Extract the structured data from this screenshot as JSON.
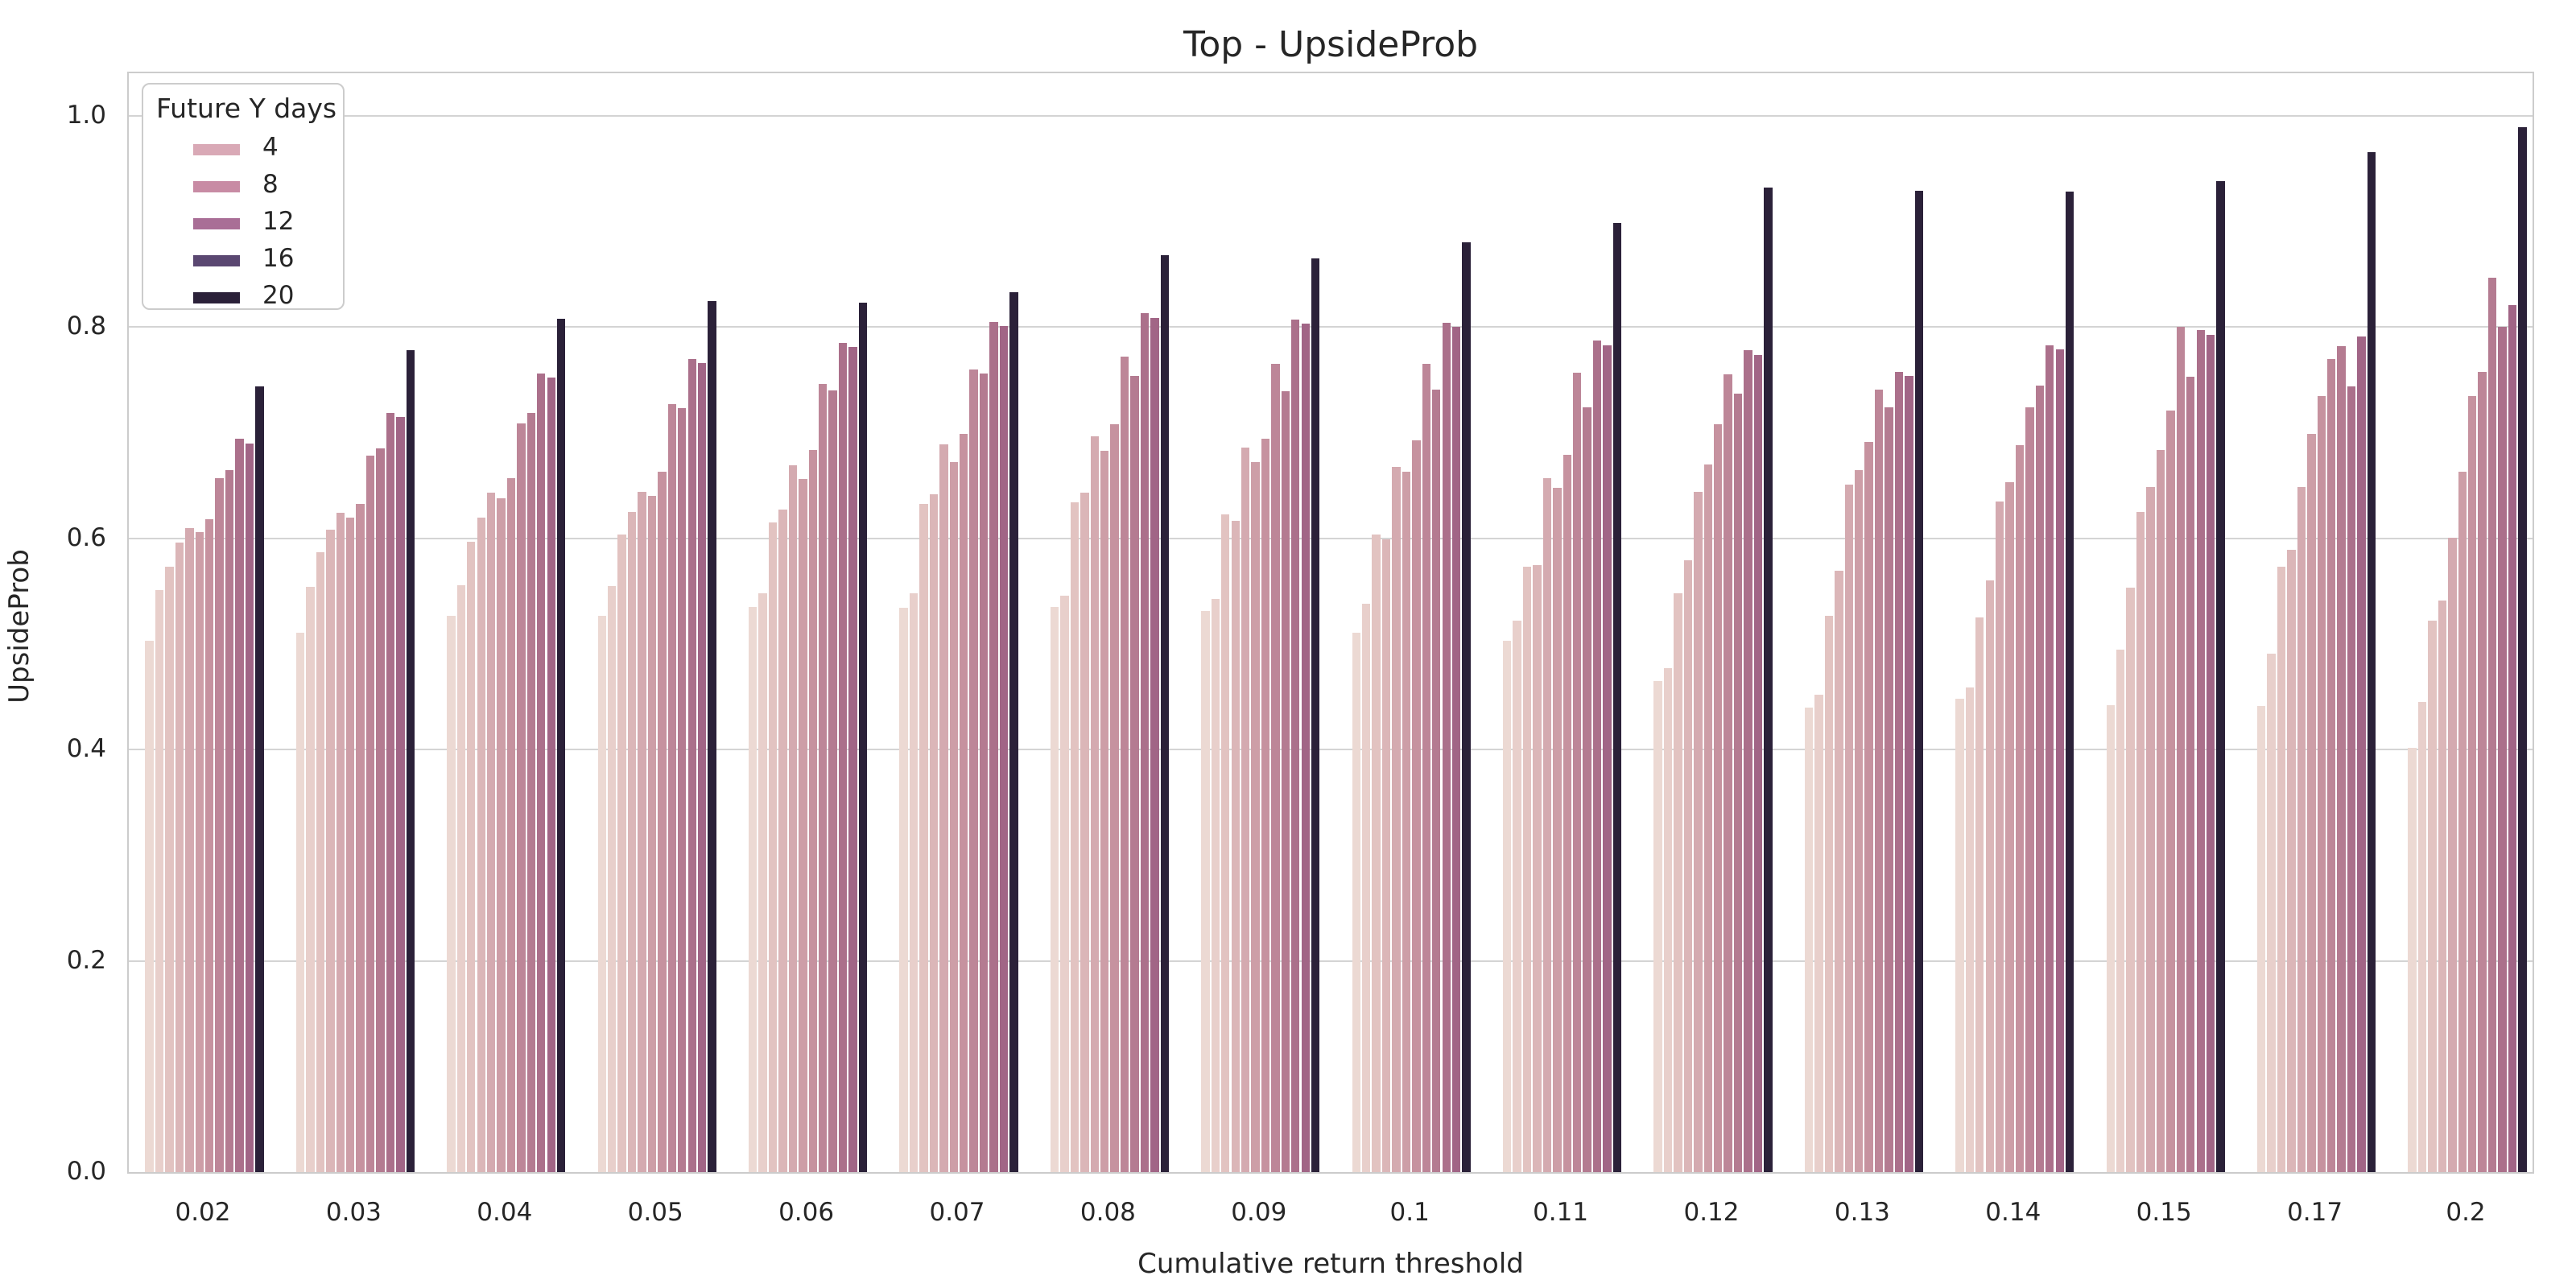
{
  "chart_data": {
    "type": "bar",
    "title": "Top - UpsideProb",
    "xlabel": "Cumulative return threshold",
    "ylabel": "UpsideProb",
    "ylim": [
      0.0,
      1.043
    ],
    "ytick_labels": [
      "0.0",
      "0.2",
      "0.4",
      "0.6",
      "0.8",
      "1.0"
    ],
    "ytick_values": [
      0.0,
      0.2,
      0.4,
      0.6,
      0.8,
      1.0
    ],
    "grid": "horizontal",
    "legend": {
      "title": "Future Y days",
      "position": "upper-left",
      "entries": [
        {
          "label": "4",
          "color": "#d9a9b6"
        },
        {
          "label": "8",
          "color": "#c88ba4"
        },
        {
          "label": "12",
          "color": "#a96e96"
        },
        {
          "label": "16",
          "color": "#5a4771"
        },
        {
          "label": "20",
          "color": "#2b2139"
        }
      ]
    },
    "categories": [
      "0.02",
      "0.03",
      "0.04",
      "0.05",
      "0.06",
      "0.07",
      "0.08",
      "0.09",
      "0.1",
      "0.11",
      "0.12",
      "0.13",
      "0.14",
      "0.15",
      "0.17",
      "0.2"
    ],
    "bars_per_group": 12,
    "bar_colors": [
      "#ecd9d3",
      "#e8cfcb",
      "#e2c3c1",
      "#dbb6b8",
      "#d4aab0",
      "#cd9ea7",
      "#c6929f",
      "#bd8698",
      "#b47b91",
      "#ab708b",
      "#a16586",
      "#2b2139"
    ],
    "groups": [
      {
        "category": "0.02",
        "values": [
          0.503,
          0.551,
          0.573,
          0.596,
          0.61,
          0.606,
          0.618,
          0.657,
          0.665,
          0.694,
          0.69,
          0.744
        ]
      },
      {
        "category": "0.03",
        "values": [
          0.511,
          0.554,
          0.587,
          0.608,
          0.624,
          0.62,
          0.633,
          0.678,
          0.685,
          0.719,
          0.715,
          0.778
        ]
      },
      {
        "category": "0.04",
        "values": [
          0.527,
          0.556,
          0.597,
          0.62,
          0.643,
          0.638,
          0.657,
          0.709,
          0.719,
          0.756,
          0.752,
          0.808
        ]
      },
      {
        "category": "0.05",
        "values": [
          0.527,
          0.555,
          0.604,
          0.625,
          0.644,
          0.64,
          0.663,
          0.727,
          0.723,
          0.77,
          0.766,
          0.825
        ]
      },
      {
        "category": "0.06",
        "values": [
          0.535,
          0.548,
          0.615,
          0.627,
          0.669,
          0.656,
          0.684,
          0.746,
          0.74,
          0.785,
          0.781,
          0.823
        ]
      },
      {
        "category": "0.07",
        "values": [
          0.534,
          0.548,
          0.633,
          0.642,
          0.689,
          0.672,
          0.699,
          0.76,
          0.756,
          0.805,
          0.801,
          0.833
        ]
      },
      {
        "category": "0.08",
        "values": [
          0.535,
          0.546,
          0.634,
          0.643,
          0.697,
          0.683,
          0.708,
          0.772,
          0.754,
          0.813,
          0.809,
          0.868
        ]
      },
      {
        "category": "0.09",
        "values": [
          0.531,
          0.543,
          0.623,
          0.617,
          0.686,
          0.672,
          0.694,
          0.765,
          0.739,
          0.807,
          0.803,
          0.865
        ]
      },
      {
        "category": "0.1",
        "values": [
          0.511,
          0.538,
          0.604,
          0.599,
          0.668,
          0.663,
          0.693,
          0.765,
          0.741,
          0.804,
          0.8,
          0.88
        ]
      },
      {
        "category": "0.11",
        "values": [
          0.503,
          0.522,
          0.573,
          0.575,
          0.657,
          0.648,
          0.679,
          0.757,
          0.724,
          0.787,
          0.783,
          0.899
        ]
      },
      {
        "category": "0.12",
        "values": [
          0.465,
          0.477,
          0.548,
          0.579,
          0.644,
          0.67,
          0.708,
          0.755,
          0.737,
          0.778,
          0.774,
          0.932
        ]
      },
      {
        "category": "0.13",
        "values": [
          0.44,
          0.452,
          0.527,
          0.569,
          0.651,
          0.665,
          0.691,
          0.741,
          0.724,
          0.758,
          0.754,
          0.929
        ]
      },
      {
        "category": "0.14",
        "values": [
          0.448,
          0.459,
          0.525,
          0.56,
          0.635,
          0.653,
          0.688,
          0.724,
          0.745,
          0.783,
          0.779,
          0.928
        ]
      },
      {
        "category": "0.15",
        "values": [
          0.442,
          0.495,
          0.553,
          0.625,
          0.649,
          0.684,
          0.721,
          0.8,
          0.753,
          0.797,
          0.793,
          0.938
        ]
      },
      {
        "category": "0.17",
        "values": [
          0.441,
          0.491,
          0.573,
          0.589,
          0.649,
          0.699,
          0.735,
          0.77,
          0.782,
          0.744,
          0.791,
          0.966
        ]
      },
      {
        "category": "0.2",
        "values": [
          0.402,
          0.445,
          0.522,
          0.541,
          0.601,
          0.663,
          0.735,
          0.758,
          0.847,
          0.8,
          0.821,
          0.989
        ]
      }
    ]
  }
}
